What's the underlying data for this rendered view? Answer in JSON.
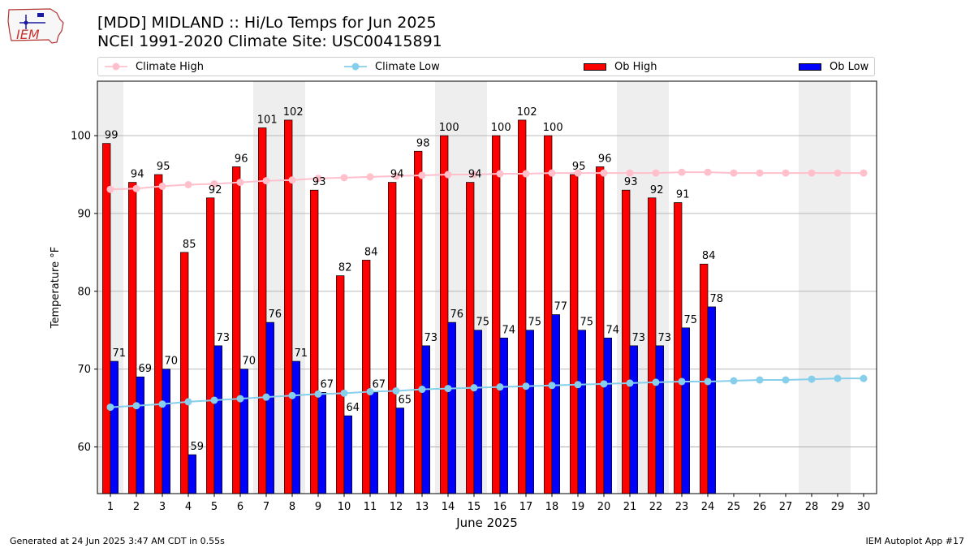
{
  "header": {
    "title_line1": "[MDD] MIDLAND :: Hi/Lo Temps for Jun 2025",
    "title_line2": "NCEI 1991-2020 Climate Site: USC00415891"
  },
  "logo": {
    "text": "IEM"
  },
  "legend": {
    "climate_high": "Climate High",
    "climate_low": "Climate Low",
    "ob_high": "Ob High",
    "ob_low": "Ob Low"
  },
  "footer": {
    "generated": "Generated at 24 Jun 2025 3:47 AM CDT in 0.55s",
    "app": "IEM Autoplot App #17"
  },
  "colors": {
    "ob_high": "#ff0000",
    "ob_low": "#0000ff",
    "climate_high": "#ffc0cb",
    "climate_low": "#87ceeb",
    "weekend_shade": "#eeeeee",
    "grid": "#b0b0b0"
  },
  "chart_data": {
    "type": "bar",
    "title": "[MDD] MIDLAND :: Hi/Lo Temps for Jun 2025",
    "xlabel": "June 2025",
    "ylabel": "Temperature °F",
    "ylim": [
      54,
      107
    ],
    "xlim": [
      0.5,
      30.5
    ],
    "yticks": [
      60,
      70,
      80,
      90,
      100
    ],
    "grid": "horizontal",
    "legend_position": "top",
    "days": [
      1,
      2,
      3,
      4,
      5,
      6,
      7,
      8,
      9,
      10,
      11,
      12,
      13,
      14,
      15,
      16,
      17,
      18,
      19,
      20,
      21,
      22,
      23,
      24,
      25,
      26,
      27,
      28,
      29,
      30
    ],
    "weekend_shaded_days": [
      1,
      7,
      8,
      14,
      15,
      21,
      22,
      28,
      29
    ],
    "series": [
      {
        "name": "Ob High",
        "kind": "bar",
        "values": [
          99,
          94,
          95,
          85,
          92,
          96,
          101,
          102,
          93,
          82,
          84,
          94,
          98,
          100,
          94,
          100,
          102,
          100,
          95,
          96,
          93,
          92,
          91.4,
          83.5
        ],
        "labels": [
          "99",
          "94",
          "95",
          "85",
          "92",
          "96",
          "101",
          "102",
          "93",
          "82",
          "84",
          "94",
          "98",
          "100",
          "94",
          "100",
          "102",
          "100",
          "95",
          "96",
          "93",
          "92",
          "91",
          "84"
        ]
      },
      {
        "name": "Ob Low",
        "kind": "bar",
        "values": [
          71,
          69,
          70,
          59,
          73,
          70,
          76,
          71,
          67,
          64,
          67,
          65,
          73,
          76,
          75,
          74,
          75,
          77,
          75,
          74,
          73,
          73,
          75.3,
          78
        ],
        "labels": [
          "71",
          "69",
          "70",
          "59",
          "73",
          "70",
          "76",
          "71",
          "67",
          "64",
          "67",
          "65",
          "73",
          "76",
          "75",
          "74",
          "75",
          "77",
          "75",
          "74",
          "73",
          "73",
          "75",
          "78"
        ]
      },
      {
        "name": "Climate High",
        "kind": "line",
        "values": [
          93.1,
          93.2,
          93.5,
          93.7,
          93.8,
          94.0,
          94.2,
          94.3,
          94.5,
          94.6,
          94.7,
          94.8,
          94.9,
          95.0,
          95.0,
          95.1,
          95.1,
          95.2,
          95.2,
          95.2,
          95.2,
          95.2,
          95.3,
          95.3,
          95.2,
          95.2,
          95.2,
          95.2,
          95.2,
          95.2
        ]
      },
      {
        "name": "Climate Low",
        "kind": "line",
        "values": [
          65.1,
          65.3,
          65.5,
          65.8,
          66.0,
          66.2,
          66.4,
          66.6,
          66.8,
          66.9,
          67.1,
          67.2,
          67.4,
          67.5,
          67.6,
          67.7,
          67.8,
          67.9,
          68.0,
          68.1,
          68.2,
          68.3,
          68.4,
          68.4,
          68.5,
          68.6,
          68.6,
          68.7,
          68.8,
          68.8
        ]
      }
    ]
  }
}
